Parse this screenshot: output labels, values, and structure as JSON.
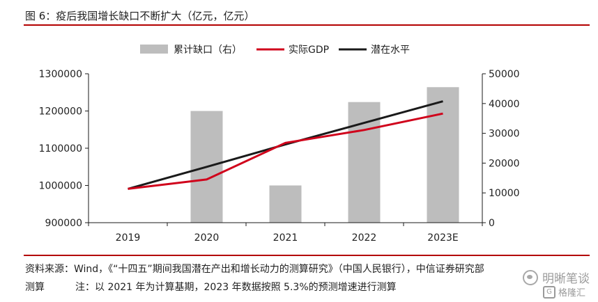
{
  "header": {
    "title": "图 6：疫后我国增长缺口不断扩大（亿元，亿元）"
  },
  "footer": {
    "source": "资料来源：Wind，《“十四五”期间我国潜在产出和增长动力的测算研究》（中国人民银行），中信证券研究部",
    "note_label": "测算",
    "note_text": "注：以 2021 年为计算基期，2023 年数据按照 5.3%的预测增速进行测算",
    "watermark_1": "明晰笔谈",
    "watermark_2": "格隆汇",
    "watermark_2_mark": "G"
  },
  "chart_data": {
    "type": "bar",
    "categories": [
      "2019",
      "2020",
      "2021",
      "2022",
      "2023E"
    ],
    "legend_position": "top-center",
    "grid": false,
    "left_axis": {
      "range": [
        900000,
        1300000
      ],
      "ticks": [
        "900000",
        "1000000",
        "1100000",
        "1200000",
        "1300000"
      ]
    },
    "right_axis": {
      "range": [
        0,
        50000
      ],
      "ticks": [
        "0",
        "10000",
        "20000",
        "30000",
        "40000",
        "50000"
      ]
    },
    "series": [
      {
        "name": "累计缺口（右）",
        "kind": "bar",
        "axis": "right",
        "color": "#bdbdbd",
        "values": [
          0,
          37500,
          12500,
          40500,
          45500
        ]
      },
      {
        "name": "实际GDP",
        "kind": "line",
        "axis": "left",
        "color": "#d0021b",
        "values": [
          990865,
          1015986,
          1114367,
          1149000,
          1193000
        ]
      },
      {
        "name": "潜在水平",
        "kind": "line",
        "axis": "left",
        "color": "#1a1a1a",
        "values": [
          990865,
          1050000,
          1110000,
          1168000,
          1226000
        ]
      }
    ]
  }
}
